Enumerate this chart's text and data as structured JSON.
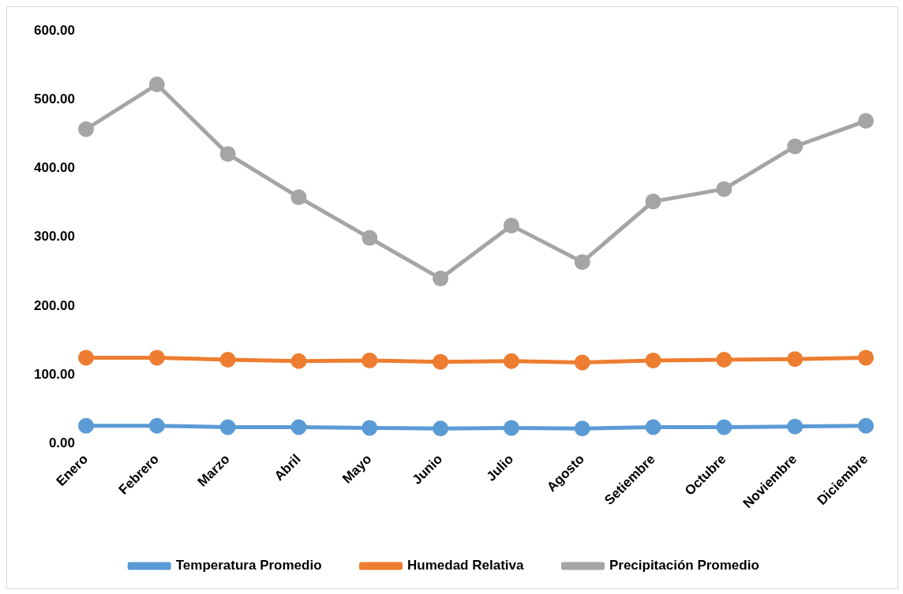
{
  "chart_data": {
    "type": "line",
    "categories": [
      "Enero",
      "Febrero",
      "Marzo",
      "Abril",
      "Mayo",
      "Junio",
      "Julio",
      "Agosto",
      "Setiembre",
      "Octubre",
      "Noviembre",
      "Diciembre"
    ],
    "series": [
      {
        "name": "Temperatura Promedio",
        "color": "#5b9bd5",
        "values": [
          26,
          26,
          24,
          24,
          23,
          22,
          23,
          22,
          24,
          24,
          25,
          26
        ]
      },
      {
        "name": "Humedad Relativa",
        "color": "#ed7d31",
        "values": [
          125,
          125,
          122,
          120,
          121,
          119,
          120,
          118,
          121,
          122,
          123,
          125
        ]
      },
      {
        "name": "Precipitación Promedio",
        "color": "#a5a5a5",
        "values": [
          457,
          522,
          421,
          358,
          299,
          240,
          317,
          264,
          352,
          370,
          432,
          469
        ]
      }
    ],
    "ylim": [
      0,
      600
    ],
    "yticks": [
      {
        "value": 0,
        "label": "0.00"
      },
      {
        "value": 100,
        "label": "100.00"
      },
      {
        "value": 200,
        "label": "200.00"
      },
      {
        "value": 300,
        "label": "300.00"
      },
      {
        "value": 400,
        "label": "400.00"
      },
      {
        "value": 500,
        "label": "500.00"
      },
      {
        "value": 600,
        "label": "600.00"
      }
    ],
    "grid": false,
    "legend": "bottom",
    "marker": "circle",
    "line_style": "solid"
  }
}
